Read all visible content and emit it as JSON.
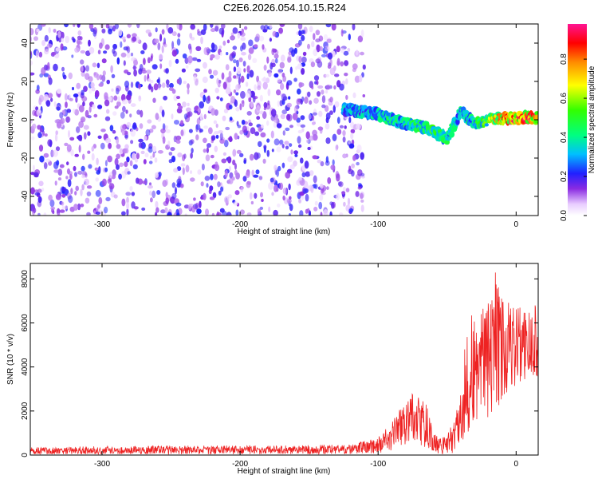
{
  "figure": {
    "title": "C2E6.2026.054.10.15.R24"
  },
  "colors": {
    "snr_line": "#ee2222",
    "background": "#ffffff",
    "axes": "#000000"
  },
  "chart_data": [
    {
      "type": "heatmap",
      "name": "spectrogram",
      "xlabel": "Height of straight line (km)",
      "ylabel": "Frequency (Hz)",
      "xlim": [
        -352,
        16
      ],
      "ylim": [
        -50,
        50
      ],
      "xticks": [
        -300,
        -200,
        -100,
        0
      ],
      "yticks": [
        -40,
        -20,
        0,
        20,
        40
      ],
      "colorbar": {
        "label": "Normalized spectral amplitude",
        "range": [
          0.0,
          0.98
        ],
        "ticks": [
          0.0,
          0.2,
          0.4,
          0.6,
          0.8
        ],
        "tick_labels": [
          "0.0",
          "0.2",
          "0.4",
          "0.6",
          "0.8"
        ],
        "colormap": "rainbow"
      },
      "ridge": {
        "description_note": "",
        "x": [
          -120,
          -100,
          -90,
          -80,
          -70,
          -60,
          -50,
          -40,
          -30,
          -20,
          -10,
          0,
          16
        ],
        "freq": [
          5,
          3,
          0,
          -2,
          -3,
          -6,
          -10,
          4,
          -2,
          0,
          1,
          1,
          1
        ],
        "amplitude": [
          0.35,
          0.4,
          0.45,
          0.45,
          0.5,
          0.55,
          0.45,
          0.4,
          0.45,
          0.6,
          0.9,
          0.95,
          0.9
        ]
      },
      "noise_region_x": [
        -352,
        -110
      ],
      "noise_level": 0.12
    },
    {
      "type": "line",
      "name": "snr",
      "xlabel": "Height of straight line (km)",
      "ylabel": "SNR (10 * v/v)",
      "xlim": [
        -352,
        16
      ],
      "ylim": [
        0,
        8700
      ],
      "xticks": [
        -300,
        -200,
        -100,
        0
      ],
      "yticks": [
        0,
        2000,
        4000,
        6000,
        8000
      ],
      "series": [
        {
          "name": "SNR",
          "x": [
            -352,
            -300,
            -250,
            -200,
            -150,
            -120,
            -100,
            -90,
            -80,
            -75,
            -70,
            -65,
            -60,
            -55,
            -50,
            -45,
            -40,
            -35,
            -30,
            -25,
            -20,
            -15,
            -10,
            -5,
            0,
            5,
            10,
            16
          ],
          "y": [
            180,
            190,
            210,
            220,
            230,
            250,
            400,
            900,
            1600,
            2000,
            1500,
            1300,
            500,
            400,
            450,
            800,
            1700,
            2800,
            3500,
            4100,
            4400,
            4700,
            5000,
            4900,
            5200,
            5100,
            5000,
            4900
          ],
          "env_high": [
            350,
            400,
            430,
            430,
            450,
            500,
            800,
            1500,
            2500,
            3000,
            2600,
            2400,
            1000,
            800,
            900,
            1600,
            3200,
            6800,
            6200,
            6600,
            7000,
            8600,
            7200,
            6900,
            6600,
            7000,
            6600,
            7000
          ],
          "env_low": [
            40,
            40,
            40,
            40,
            40,
            40,
            80,
            200,
            500,
            700,
            400,
            300,
            100,
            50,
            50,
            100,
            500,
            1000,
            1500,
            1800,
            1700,
            2000,
            2500,
            2800,
            3200,
            3400,
            3500,
            3500
          ]
        }
      ]
    }
  ]
}
